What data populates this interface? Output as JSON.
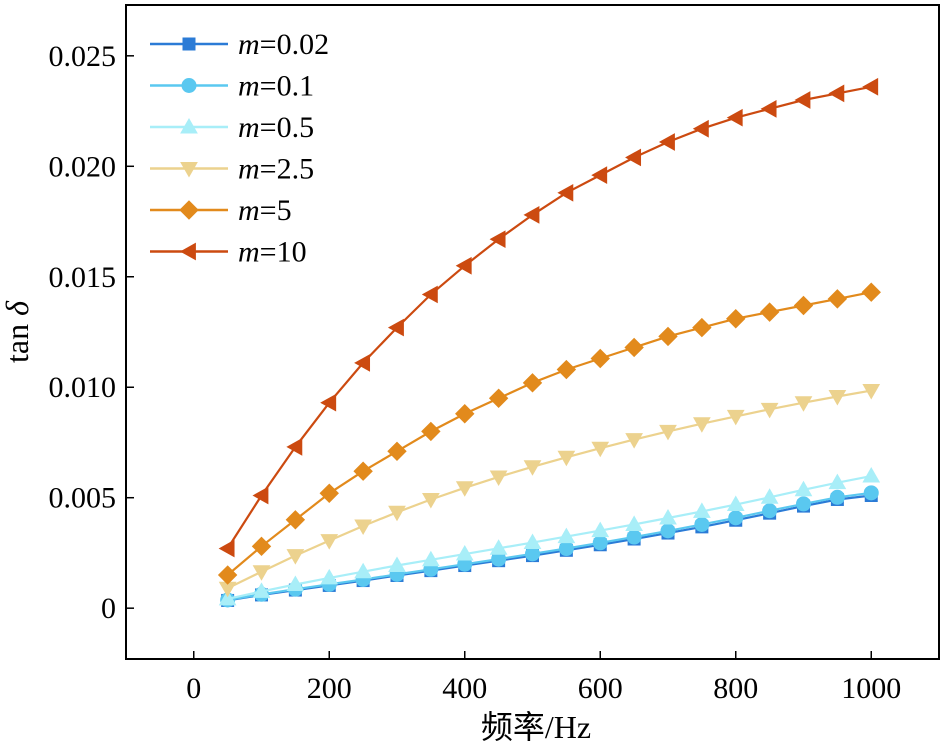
{
  "chart_data": {
    "type": "line",
    "title": "",
    "xlabel": "频率/Hz",
    "ylabel_prefix": "tan ",
    "ylabel_symbol": "δ",
    "xlim": [
      -100,
      1100
    ],
    "ylim": [
      -0.0023,
      0.0273
    ],
    "x_ticks": [
      0,
      200,
      400,
      600,
      800,
      1000
    ],
    "x_tick_labels": [
      "0",
      "200",
      "400",
      "600",
      "800",
      "1000"
    ],
    "y_ticks": [
      0,
      0.005,
      0.01,
      0.015,
      0.02,
      0.025
    ],
    "y_tick_labels": [
      "0",
      "0.005",
      "0.010",
      "0.015",
      "0.020",
      "0.025"
    ],
    "grid": false,
    "legend_position": "top-left",
    "x": [
      50,
      100,
      150,
      200,
      250,
      300,
      350,
      400,
      450,
      500,
      550,
      600,
      650,
      700,
      750,
      800,
      850,
      900,
      950,
      1000
    ],
    "series": [
      {
        "name_var": "m",
        "name_value": "=0.02",
        "color": "#2b7bd6",
        "marker": "square",
        "values": [
          0.00035,
          0.0006,
          0.00082,
          0.00103,
          0.00125,
          0.00148,
          0.0017,
          0.00193,
          0.00215,
          0.00238,
          0.00262,
          0.00287,
          0.00313,
          0.0034,
          0.00368,
          0.00398,
          0.0043,
          0.00462,
          0.00492,
          0.0051
        ]
      },
      {
        "name_var": "m",
        "name_value": "=0.1",
        "color": "#5ac8f0",
        "marker": "circle",
        "values": [
          0.00037,
          0.00063,
          0.00086,
          0.00108,
          0.0013,
          0.00153,
          0.00176,
          0.00199,
          0.00222,
          0.00246,
          0.0027,
          0.00296,
          0.00322,
          0.0035,
          0.00379,
          0.00409,
          0.00441,
          0.00472,
          0.00502,
          0.00522
        ]
      },
      {
        "name_var": "m",
        "name_value": "=0.5",
        "color": "#a8eef8",
        "marker": "triangle-up",
        "values": [
          0.00042,
          0.00076,
          0.00107,
          0.00137,
          0.00165,
          0.00193,
          0.00219,
          0.00245,
          0.00271,
          0.00297,
          0.00324,
          0.00351,
          0.00379,
          0.00408,
          0.00438,
          0.00469,
          0.00502,
          0.00536,
          0.00568,
          0.00598
        ]
      },
      {
        "name_var": "m",
        "name_value": "=2.5",
        "color": "#ecd28e",
        "marker": "triangle-down",
        "values": [
          0.0009,
          0.00165,
          0.00238,
          0.00306,
          0.00372,
          0.00434,
          0.00492,
          0.00545,
          0.00594,
          0.0064,
          0.00683,
          0.00724,
          0.00763,
          0.008,
          0.00835,
          0.00868,
          0.009,
          0.0093,
          0.00958,
          0.00985
        ]
      },
      {
        "name_var": "m",
        "name_value": "=5",
        "color": "#e28a1c",
        "marker": "diamond",
        "values": [
          0.0015,
          0.0028,
          0.004,
          0.0052,
          0.0062,
          0.0071,
          0.008,
          0.0088,
          0.0095,
          0.0102,
          0.0108,
          0.0113,
          0.0118,
          0.0123,
          0.0127,
          0.0131,
          0.0134,
          0.0137,
          0.014,
          0.0143
        ]
      },
      {
        "name_var": "m",
        "name_value": "=10",
        "color": "#cc4a10",
        "marker": "triangle-left",
        "values": [
          0.0027,
          0.0051,
          0.0073,
          0.0093,
          0.0111,
          0.0127,
          0.0142,
          0.0155,
          0.0167,
          0.0178,
          0.0188,
          0.0196,
          0.0204,
          0.0211,
          0.0217,
          0.0222,
          0.0226,
          0.023,
          0.0233,
          0.0236
        ]
      }
    ]
  }
}
